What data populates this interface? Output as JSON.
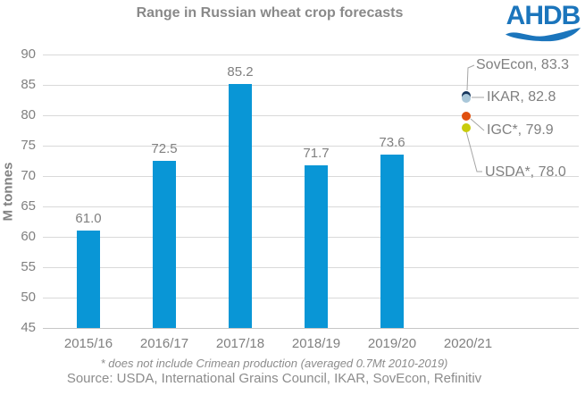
{
  "title": "Range in Russian wheat crop forecasts",
  "logo": {
    "text": "AHDB",
    "color": "#1b75bc"
  },
  "footnote": "* does not include Crimean production (averaged 0.7Mt 2010-2019)",
  "source": "Source: USDA, International Grains Council, IKAR, SovEcon, Refinitiv",
  "colors": {
    "bar": "#0996d6",
    "title_text": "#898989",
    "axis_text": "#808080",
    "gridline": "#d9d9d9",
    "leader_line": "#a6a6a6"
  },
  "chart_data": {
    "type": "bar",
    "title": "Range in Russian wheat crop forecasts",
    "xlabel": "",
    "ylabel": "M tonnes",
    "ylim": [
      45,
      90
    ],
    "ytick_step": 5,
    "grid": "horizontal",
    "legend": "none",
    "categories": [
      "2015/16",
      "2016/17",
      "2017/18",
      "2018/19",
      "2019/20",
      "2020/21"
    ],
    "bars": {
      "values": [
        61.0,
        72.5,
        85.2,
        71.7,
        73.6
      ],
      "labels": [
        "61.0",
        "72.5",
        "85.2",
        "71.7",
        "73.6"
      ]
    },
    "bar_color": "#0996d6",
    "scatter_category": "2020/21",
    "forecasts": [
      {
        "id": "sovecon",
        "name": "SovEcon",
        "value": 83.3,
        "label": "SovEcon, 83.3",
        "color": "#17375e"
      },
      {
        "id": "ikar",
        "name": "IKAR",
        "value": 82.8,
        "label": "IKAR, 82.8",
        "color": "#a9c7d9"
      },
      {
        "id": "igc",
        "name": "IGC*",
        "value": 79.9,
        "label": "IGC*, 79.9",
        "color": "#e0500f"
      },
      {
        "id": "usda",
        "name": "USDA*",
        "value": 78.0,
        "label": "USDA*, 78.0",
        "color": "#c8cc0c"
      }
    ]
  }
}
